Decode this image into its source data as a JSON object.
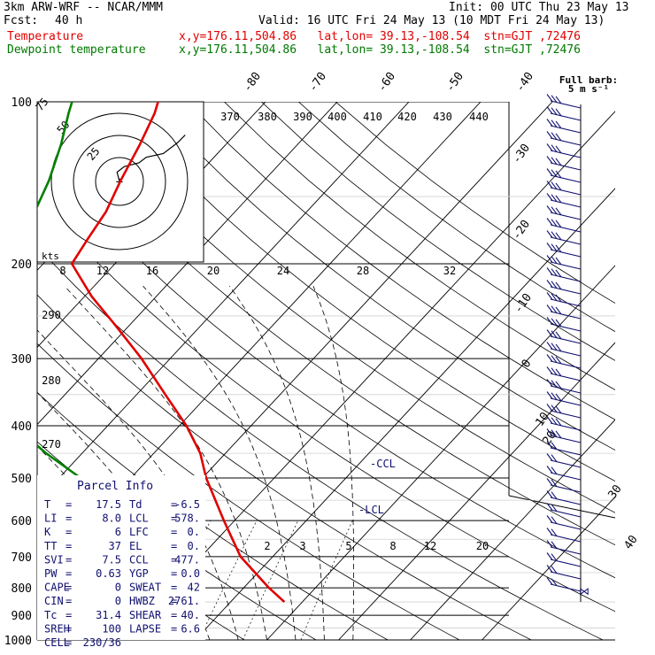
{
  "header": {
    "model": "3km ARW-WRF -- NCAR/MMM",
    "init": "Init: 00 UTC Thu 23 May 13",
    "fcst_label": "Fcst:",
    "fcst_value": "40 h",
    "valid": "Valid: 16 UTC Fri 24 May 13 (10 MDT Fri 24 May 13)",
    "temp_label": "Temperature",
    "temp_loc": "x,y=176.11,504.86   lat,lon= 39.13,-108.54  stn=GJT ,72476",
    "dew_label": "Dewpoint temperature",
    "dew_loc": "x,y=176.11,504.86   lat,lon= 39.13,-108.54  stn=GJT ,72476",
    "barb_title": "Full barb:",
    "barb_unit": "5 m s⁻¹"
  },
  "colors": {
    "temperature": "#e00000",
    "dewpoint": "#008000",
    "wind": "#101070",
    "grid": "#000000"
  },
  "chart_data": {
    "type": "line",
    "title": "",
    "ylabel": "",
    "xlabel": "",
    "pressure_levels": [
      100,
      200,
      300,
      400,
      500,
      600,
      700,
      800,
      900,
      1000
    ],
    "isotherm_labels": [
      -80,
      -70,
      -60,
      -50,
      -40,
      -30,
      -20,
      -10,
      0,
      10,
      20,
      30,
      40
    ],
    "mixing_ratio_labels": [
      2,
      3,
      5,
      8,
      12,
      20
    ],
    "theta_labels": [
      370,
      380,
      390,
      400,
      410,
      420,
      430,
      440
    ],
    "theta_side_labels": [
      290,
      280,
      270
    ],
    "lower_markers": [
      "2",
      "3",
      "5",
      "8",
      "12",
      "20"
    ],
    "series": [
      {
        "name": "Temperature",
        "points": [
          [
            850,
            17.5
          ],
          [
            800,
            13.5
          ],
          [
            700,
            5.5
          ],
          [
            600,
            -1.5
          ],
          [
            500,
            -9.5
          ],
          [
            450,
            -13.5
          ],
          [
            400,
            -19
          ],
          [
            350,
            -26
          ],
          [
            300,
            -34
          ],
          [
            260,
            -42
          ],
          [
            230,
            -49
          ],
          [
            200,
            -56
          ],
          [
            180,
            -57
          ],
          [
            160,
            -58
          ],
          [
            140,
            -60
          ],
          [
            120,
            -62
          ],
          [
            105,
            -64
          ],
          [
            100,
            -65
          ]
        ]
      },
      {
        "name": "Dewpoint temperature",
        "points": [
          [
            850,
            -6.5
          ],
          [
            820,
            -4.5
          ],
          [
            800,
            -7
          ],
          [
            780,
            -6
          ],
          [
            750,
            -7
          ],
          [
            700,
            -10
          ],
          [
            650,
            -14
          ],
          [
            600,
            -19
          ],
          [
            500,
            -27
          ],
          [
            450,
            -35
          ],
          [
            400,
            -43
          ],
          [
            360,
            -50
          ],
          [
            320,
            -53
          ],
          [
            280,
            -53
          ],
          [
            240,
            -56
          ],
          [
            200,
            -62
          ],
          [
            170,
            -67
          ],
          [
            140,
            -70
          ],
          [
            120,
            -73
          ],
          [
            105,
            -76
          ],
          [
            100,
            -77
          ]
        ]
      }
    ],
    "parcel_info": {
      "title": "Parcel Info",
      "rows": [
        [
          "T",
          "17.5",
          "Td",
          "-6.5"
        ],
        [
          "LI",
          "8.0",
          "LCL",
          "578."
        ],
        [
          "K",
          "6",
          "LFC",
          "0."
        ],
        [
          "TT",
          "37",
          "EL",
          "0."
        ],
        [
          "SVI",
          "7.5",
          "CCL",
          "477."
        ],
        [
          "PW",
          "0.63",
          "YGP",
          "0.0"
        ],
        [
          "CAPE",
          "0",
          "SWEAT",
          "42"
        ],
        [
          "CIN",
          "0",
          "HWBZ",
          "2761."
        ],
        [
          "Tc",
          "31.4",
          "SHEAR",
          "40."
        ],
        [
          "SREH",
          "100",
          "LAPSE",
          "6.6"
        ],
        [
          "CELL",
          "230/36",
          "",
          ""
        ]
      ]
    },
    "annotations": [
      "CCL",
      "LCL"
    ],
    "hodograph": {
      "unit_label": "kts",
      "ring_labels": [
        "25",
        "50",
        "75"
      ],
      "speed_labels": [
        "8",
        "12",
        "16",
        "20",
        "24",
        "28",
        "32"
      ],
      "points": [
        [
          0,
          0
        ],
        [
          -1,
          5
        ],
        [
          2,
          8
        ],
        [
          8,
          10
        ],
        [
          11,
          13
        ],
        [
          18,
          15
        ],
        [
          24,
          21
        ],
        [
          27,
          25
        ]
      ]
    },
    "wind_barbs_count": 40
  }
}
